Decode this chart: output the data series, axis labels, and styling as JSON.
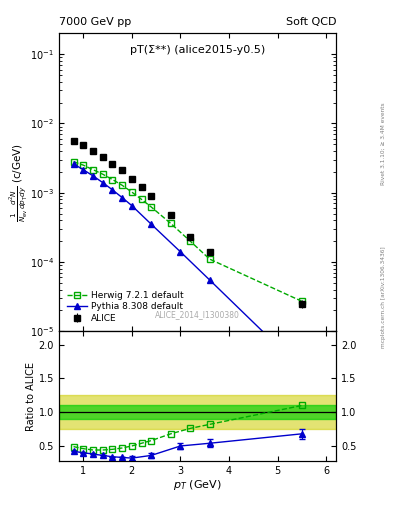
{
  "title_left": "7000 GeV pp",
  "title_right": "Soft QCD",
  "annotation": "pT(Σ**) (alice2015-y0.5)",
  "watermark": "ALICE_2014_I1300380",
  "ylabel_ratio": "Ratio to ALICE",
  "xlabel": "p_{T} (GeV)",
  "right_label_top": "Rivet 3.1.10; ≥ 3.4M events",
  "right_label_bot": "mcplots.cern.ch [arXiv:1306.3436]",
  "alice_pt": [
    0.8,
    1.0,
    1.2,
    1.4,
    1.6,
    1.8,
    2.0,
    2.2,
    2.4,
    2.8,
    3.2,
    3.6,
    5.5
  ],
  "alice_y": [
    0.0055,
    0.0048,
    0.004,
    0.0033,
    0.0026,
    0.0021,
    0.0016,
    0.0012,
    0.0009,
    0.00048,
    0.00023,
    0.00014,
    2.5e-05
  ],
  "alice_yerr": [
    0.0003,
    0.00025,
    0.0002,
    0.00015,
    0.00012,
    0.0001,
    7e-05,
    5e-05,
    4e-05,
    2e-05,
    1e-05,
    8e-06,
    3e-06
  ],
  "herwig_pt": [
    0.8,
    1.0,
    1.2,
    1.4,
    1.6,
    1.8,
    2.0,
    2.2,
    2.4,
    2.8,
    3.2,
    3.6,
    5.5
  ],
  "herwig_y": [
    0.0028,
    0.0025,
    0.00215,
    0.00185,
    0.00155,
    0.00128,
    0.00102,
    0.0008,
    0.00062,
    0.00036,
    0.0002,
    0.00011,
    2.7e-05
  ],
  "pythia_pt": [
    0.8,
    1.0,
    1.2,
    1.4,
    1.6,
    1.8,
    2.0,
    2.4,
    3.0,
    3.6,
    5.5
  ],
  "pythia_y": [
    0.0026,
    0.00215,
    0.00175,
    0.0014,
    0.0011,
    0.00085,
    0.00065,
    0.00035,
    0.00014,
    5.5e-05,
    2.8e-06
  ],
  "herwig_ratio_pt": [
    0.8,
    1.0,
    1.2,
    1.4,
    1.6,
    1.8,
    2.0,
    2.2,
    2.4,
    2.8,
    3.2,
    3.6,
    5.5
  ],
  "herwig_ratio_y": [
    0.49,
    0.46,
    0.44,
    0.44,
    0.45,
    0.47,
    0.5,
    0.54,
    0.58,
    0.68,
    0.76,
    0.82,
    1.1
  ],
  "pythia_ratio_pt": [
    0.8,
    1.0,
    1.2,
    1.4,
    1.6,
    1.8,
    2.0,
    2.4,
    3.0,
    3.6,
    5.5
  ],
  "pythia_ratio_y": [
    0.42,
    0.4,
    0.38,
    0.36,
    0.34,
    0.33,
    0.32,
    0.36,
    0.5,
    0.54,
    0.68
  ],
  "pythia_ratio_err": [
    0.0,
    0.0,
    0.0,
    0.0,
    0.0,
    0.0,
    0.03,
    0.04,
    0.05,
    0.06,
    0.07
  ],
  "band_inner_lo": 0.9,
  "band_inner_hi": 1.1,
  "band_outer_lo": 0.75,
  "band_outer_hi": 1.25,
  "color_alice": "#000000",
  "color_herwig": "#00aa00",
  "color_pythia": "#0000cc",
  "color_band_inner": "#00cc00",
  "color_band_outer": "#cccc00",
  "main_ylim": [
    1e-05,
    0.2
  ],
  "ratio_ylim": [
    0.28,
    2.2
  ],
  "ratio_yticks": [
    0.5,
    1.0,
    1.5,
    2.0
  ],
  "xlim": [
    0.5,
    6.2
  ]
}
